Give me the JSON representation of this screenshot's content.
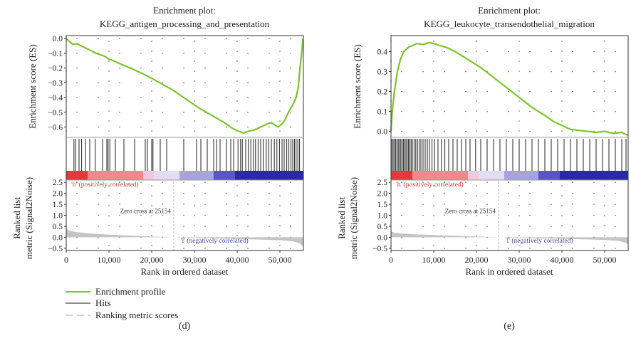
{
  "colors": {
    "enrichment_line": "#7dc42a",
    "hits": "#222222",
    "metric_fill": "#c4c4c4",
    "grid_dots": "#666666",
    "frame": "#333333",
    "zero_cross_line": "#bbbbbb",
    "pos_label": "#d83a3a",
    "neg_label": "#4b48a8",
    "strip_stops": [
      "#e13a3a",
      "#ee8a8a",
      "#f6c6de",
      "#e2dcf4",
      "#a7a2e2",
      "#5a55c2",
      "#2c29a6"
    ]
  },
  "legend": {
    "items": [
      {
        "label": "Enrichment profile",
        "color": "#7dc42a",
        "style": "solid"
      },
      {
        "label": "Hits",
        "color": "#666666",
        "style": "solid"
      },
      {
        "label": "Ranking metric scores",
        "color": "#c4c4c4",
        "style": "dashed"
      }
    ]
  },
  "chart_data": [
    {
      "type": "line",
      "panel_label": "(d)",
      "title_line1": "Enrichment plot:",
      "title_line2": "KEGG_antigen_processing_and_presentation",
      "top_ylabel": "Enrichment score (ES)",
      "bottom_ylabel_line1": "Ranked list",
      "bottom_ylabel_line2": "metric (Signal2Noise)",
      "xlabel": "Rank in ordered dataset",
      "xlim": [
        0,
        55500
      ],
      "xticks": [
        0,
        10000,
        20000,
        30000,
        40000,
        50000
      ],
      "xtick_labels": [
        "0",
        "10,000",
        "20,000",
        "30,000",
        "40,000",
        "50,000"
      ],
      "es_ylim": [
        -0.67,
        0.02
      ],
      "es_yticks": [
        0.0,
        -0.1,
        -0.2,
        -0.3,
        -0.4,
        -0.5,
        -0.6
      ],
      "es_ytick_labels": [
        "0.0",
        "−0.1",
        "−0.2",
        "−0.3",
        "−0.4",
        "−0.5",
        "−0.6"
      ],
      "es_x": [
        0,
        1500,
        2500,
        3500,
        5000,
        7000,
        9000,
        10000,
        11000,
        12500,
        15000,
        18000,
        20000,
        22500,
        25000,
        28000,
        31000,
        34000,
        37000,
        39000,
        40500,
        41500,
        42500,
        44000,
        45500,
        47000,
        48000,
        49500,
        50500,
        51200,
        52000,
        53000,
        53800,
        54300,
        54700,
        55100,
        55400
      ],
      "es_y": [
        0.0,
        -0.04,
        -0.035,
        -0.05,
        -0.07,
        -0.1,
        -0.12,
        -0.14,
        -0.15,
        -0.17,
        -0.2,
        -0.24,
        -0.27,
        -0.31,
        -0.35,
        -0.41,
        -0.47,
        -0.52,
        -0.57,
        -0.61,
        -0.63,
        -0.64,
        -0.63,
        -0.62,
        -0.6,
        -0.58,
        -0.57,
        -0.6,
        -0.58,
        -0.55,
        -0.5,
        -0.45,
        -0.4,
        -0.33,
        -0.2,
        -0.1,
        0.0
      ],
      "hits": [
        1800,
        2200,
        3000,
        3600,
        4500,
        5500,
        6800,
        8500,
        9500,
        9800,
        10200,
        11500,
        13500,
        16000,
        18500,
        19000,
        20000,
        20300,
        22000,
        23500,
        27500,
        30500,
        31500,
        33000,
        34500,
        35200,
        36000,
        37500,
        38500,
        39200,
        40200,
        40800,
        41200,
        42000,
        42600,
        43200,
        43800,
        44300,
        44900,
        45500,
        46100,
        46800,
        47400,
        48000,
        48700,
        49300,
        49900,
        50500,
        51000,
        51600,
        52100,
        52600,
        53000,
        53400,
        53800,
        54200,
        54600
      ],
      "metric_ylim": [
        -0.6,
        2.6
      ],
      "metric_yticks": [
        -0.5,
        0.0,
        0.5,
        1.0,
        1.5,
        2.0,
        2.5
      ],
      "metric_ytick_labels": [
        "−0.5",
        "0.0",
        "0.5",
        "1.0",
        "1.5",
        "2.0",
        "2.5"
      ],
      "metric_x": [
        0,
        500,
        2000,
        5000,
        10000,
        15000,
        20000,
        25154,
        30000,
        35000,
        40000,
        45000,
        50000,
        53000,
        54500,
        55400
      ],
      "metric_y": [
        0.45,
        0.32,
        0.25,
        0.18,
        0.12,
        0.08,
        0.04,
        0.0,
        -0.03,
        -0.06,
        -0.08,
        -0.1,
        -0.13,
        -0.18,
        -0.26,
        -0.4
      ],
      "strip_breaks": [
        0,
        5000,
        18000,
        20500,
        26500,
        34500,
        39500,
        55500
      ],
      "zero_cross_x": 25154,
      "zero_cross_label": "Zero cross at 25154",
      "pos_label": "'h' (positively correlated)",
      "neg_label": "'l' (negatively correlated)"
    },
    {
      "type": "line",
      "panel_label": "(e)",
      "title_line1": "Enrichment plot:",
      "title_line2": "KEGG_leukocyte_transendothelial_migration",
      "top_ylabel": "Enrichment score (ES)",
      "bottom_ylabel_line1": "Ranked list",
      "bottom_ylabel_line2": "metric (Signal2Noise)",
      "xlabel": "Rank in ordered dataset",
      "xlim": [
        0,
        55500
      ],
      "xticks": [
        0,
        10000,
        20000,
        30000,
        40000,
        50000
      ],
      "xtick_labels": [
        "0",
        "10,000",
        "20,000",
        "30,000",
        "40,000",
        "50,000"
      ],
      "es_ylim": [
        -0.03,
        0.48
      ],
      "es_yticks": [
        0.0,
        0.1,
        0.2,
        0.3,
        0.4
      ],
      "es_ytick_labels": [
        "0.0",
        "0.1",
        "0.2",
        "0.3",
        "0.4"
      ],
      "es_x": [
        0,
        300,
        800,
        1500,
        2200,
        3000,
        4000,
        5000,
        6000,
        7500,
        9000,
        10000,
        11500,
        13000,
        15000,
        18000,
        21000,
        24000,
        27000,
        30000,
        33000,
        36000,
        38000,
        40000,
        42000,
        44000,
        46000,
        48000,
        50000,
        52000,
        54000,
        55400
      ],
      "es_y": [
        0.0,
        0.1,
        0.2,
        0.3,
        0.36,
        0.4,
        0.42,
        0.43,
        0.44,
        0.435,
        0.445,
        0.44,
        0.43,
        0.42,
        0.4,
        0.36,
        0.32,
        0.27,
        0.22,
        0.17,
        0.12,
        0.08,
        0.05,
        0.03,
        0.01,
        0.005,
        0.0,
        -0.005,
        0.0,
        -0.01,
        -0.005,
        -0.02
      ],
      "hits": [
        200,
        500,
        800,
        1100,
        1400,
        1700,
        2000,
        2300,
        2600,
        2900,
        3200,
        3500,
        3800,
        4100,
        4400,
        4700,
        5000,
        5400,
        5800,
        6200,
        6600,
        7000,
        7500,
        8000,
        8500,
        9000,
        9600,
        10200,
        11000,
        11800,
        12600,
        13500,
        14500,
        15500,
        16500,
        17500,
        18500,
        19800,
        21000,
        22500,
        24000,
        25500,
        27000,
        28500,
        30000,
        31500,
        33000,
        34500,
        36000,
        37500,
        39000,
        40500,
        42000,
        43500,
        45000,
        46500,
        48000,
        49500,
        51000,
        52500,
        54000,
        55000
      ],
      "metric_ylim": [
        -0.6,
        2.6
      ],
      "metric_yticks": [
        -0.5,
        0.0,
        0.5,
        1.0,
        1.5,
        2.0,
        2.5
      ],
      "metric_ytick_labels": [
        "−0.5",
        "0.0",
        "0.5",
        "1.0",
        "1.5",
        "2.0",
        "2.5"
      ],
      "metric_x": [
        0,
        500,
        2000,
        5000,
        10000,
        15000,
        20000,
        25154,
        30000,
        35000,
        40000,
        45000,
        50000,
        53000,
        54500,
        55400
      ],
      "metric_y": [
        0.3,
        0.22,
        0.18,
        0.14,
        0.1,
        0.07,
        0.04,
        0.0,
        -0.03,
        -0.05,
        -0.07,
        -0.09,
        -0.12,
        -0.16,
        -0.22,
        -0.3
      ],
      "strip_breaks": [
        0,
        5000,
        18000,
        20500,
        26500,
        34500,
        39500,
        55500
      ],
      "zero_cross_x": 25154,
      "zero_cross_label": "Zero cross at 25154",
      "pos_label": "'h' (positively correlated)",
      "neg_label": "'l' (negatively correlated)"
    }
  ]
}
